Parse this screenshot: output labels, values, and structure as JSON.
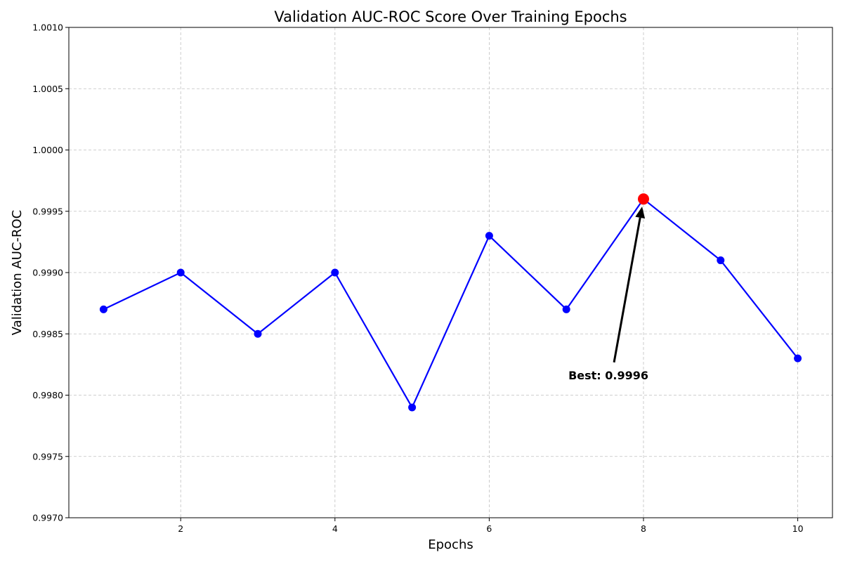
{
  "chart_data": {
    "type": "line",
    "title": "Validation AUC-ROC Score Over Training Epochs",
    "xlabel": "Epochs",
    "ylabel": "Validation AUC-ROC",
    "x": [
      1,
      2,
      3,
      4,
      5,
      6,
      7,
      8,
      9,
      10
    ],
    "series": [
      {
        "values": [
          0.9987,
          0.999,
          0.9985,
          0.999,
          0.9979,
          0.9993,
          0.9987,
          0.9996,
          0.9991,
          0.9983
        ]
      }
    ],
    "xlim": [
      0.55,
      10.45
    ],
    "ylim": [
      0.997,
      1.001
    ],
    "xticks": [
      2,
      4,
      6,
      8,
      10
    ],
    "xtick_labels": [
      "2",
      "4",
      "6",
      "8",
      "10"
    ],
    "yticks": [
      0.997,
      0.9975,
      0.998,
      0.9985,
      0.999,
      0.9995,
      1.0,
      1.0005,
      1.001
    ],
    "ytick_labels": [
      "0.9970",
      "0.9975",
      "0.9980",
      "0.9985",
      "0.9990",
      "0.9995",
      "1.0000",
      "1.0005",
      "1.0010"
    ],
    "grid": true,
    "grid_style": "dashed",
    "line_color": "#0000ff",
    "highlight": {
      "x": 8,
      "y": 0.9996,
      "color": "#ff0000"
    },
    "annotation": {
      "text": "Best: 0.9996",
      "point_x": 8,
      "point_y": 0.9996,
      "text_x": 7.6,
      "text_y": 0.99813
    }
  }
}
